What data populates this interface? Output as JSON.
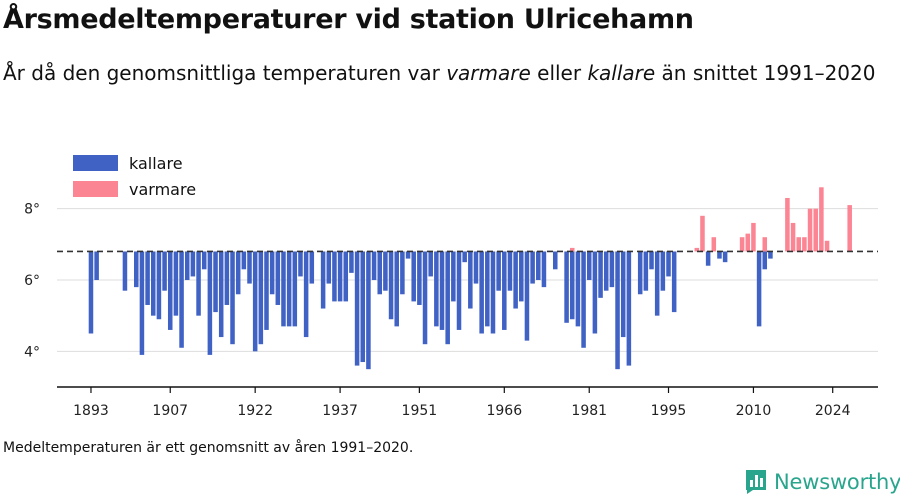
{
  "header": {
    "title": "Årsmedeltemperaturer vid station Ulricehamn",
    "subtitle_parts": [
      "År då den genomsnittliga temperaturen var ",
      "varmare",
      " eller ",
      "kallare",
      " än snittet 1991–2020"
    ]
  },
  "footnote": "Medeltemperaturen är ett genomsnitt av åren 1991–2020.",
  "brand": {
    "name": "Newsworthy",
    "icon": "bar-chart-logo-icon"
  },
  "colors": {
    "kallare": "#4062c4",
    "varmare": "#fb8593",
    "baseline": "#333333",
    "grid": "#dddddd",
    "brand": "#2aa58d"
  },
  "chart_data": {
    "type": "bar",
    "title": "Årsmedeltemperaturer vid station Ulricehamn",
    "baseline": 6.8,
    "ylim": [
      3.0,
      9.0
    ],
    "yticks": [
      4,
      6,
      8
    ],
    "ytick_labels": [
      "4°",
      "6°",
      "8°"
    ],
    "xticks": [
      1893,
      1907,
      1922,
      1937,
      1951,
      1966,
      1981,
      1995,
      2010,
      2024
    ],
    "xlim": [
      1887,
      2032
    ],
    "grid": true,
    "legend": {
      "position": "top-left",
      "entries": [
        {
          "label": "kallare",
          "color": "#4062c4"
        },
        {
          "label": "varmare",
          "color": "#fb8593"
        }
      ]
    },
    "series": [
      {
        "name": "kallare",
        "x": [
          1893,
          1894,
          1899,
          1901,
          1902,
          1903,
          1904,
          1905,
          1906,
          1907,
          1908,
          1909,
          1910,
          1911,
          1912,
          1913,
          1914,
          1915,
          1916,
          1917,
          1918,
          1919,
          1920,
          1921,
          1922,
          1923,
          1924,
          1925,
          1926,
          1927,
          1928,
          1929,
          1930,
          1931,
          1932,
          1934,
          1935,
          1936,
          1937,
          1938,
          1939,
          1940,
          1941,
          1942,
          1943,
          1944,
          1945,
          1946,
          1947,
          1948,
          1949,
          1950,
          1951,
          1952,
          1953,
          1954,
          1955,
          1956,
          1957,
          1958,
          1959,
          1960,
          1961,
          1962,
          1963,
          1964,
          1965,
          1966,
          1967,
          1968,
          1969,
          1970,
          1971,
          1972,
          1973,
          1975,
          1977,
          1978,
          1979,
          1980,
          1981,
          1982,
          1983,
          1984,
          1985,
          1986,
          1987,
          1988,
          1990,
          1991,
          1992,
          1993,
          1994,
          1995,
          1996,
          2002,
          2004,
          2005,
          2011,
          2012,
          2013
        ],
        "values": [
          4.5,
          6.0,
          5.7,
          5.8,
          3.9,
          5.3,
          5.0,
          4.9,
          5.7,
          4.6,
          5.0,
          4.1,
          6.0,
          6.1,
          5.0,
          6.3,
          3.9,
          5.1,
          4.4,
          5.3,
          4.2,
          5.6,
          6.3,
          5.9,
          4.0,
          4.2,
          4.6,
          5.6,
          5.3,
          4.7,
          4.7,
          4.7,
          6.1,
          4.4,
          5.9,
          5.2,
          5.9,
          5.4,
          5.4,
          5.4,
          6.2,
          3.6,
          3.7,
          3.5,
          6.0,
          5.6,
          5.7,
          4.9,
          4.7,
          5.6,
          6.6,
          5.4,
          5.3,
          4.2,
          6.1,
          4.7,
          4.6,
          4.2,
          5.4,
          4.6,
          6.5,
          5.2,
          5.9,
          4.5,
          4.7,
          4.5,
          5.7,
          4.6,
          5.7,
          5.2,
          5.4,
          4.3,
          5.9,
          6.0,
          5.8,
          6.3,
          4.8,
          4.9,
          4.7,
          4.1,
          6.0,
          4.5,
          5.5,
          5.7,
          5.8,
          3.5,
          4.4,
          3.6,
          5.6,
          5.7,
          6.3,
          5.0,
          5.7,
          6.1,
          5.1,
          6.4,
          6.6,
          6.5,
          4.7,
          6.3,
          6.6
        ]
      },
      {
        "name": "varmare",
        "x": [
          1978,
          2000,
          2001,
          2003,
          2008,
          2009,
          2010,
          2012,
          2016,
          2017,
          2018,
          2019,
          2020,
          2021,
          2022,
          2023,
          2027
        ],
        "values": [
          6.9,
          6.9,
          7.8,
          7.2,
          7.2,
          7.3,
          7.6,
          7.2,
          8.3,
          7.6,
          7.2,
          7.2,
          8.0,
          8.0,
          8.6,
          7.1,
          8.1
        ]
      }
    ]
  }
}
